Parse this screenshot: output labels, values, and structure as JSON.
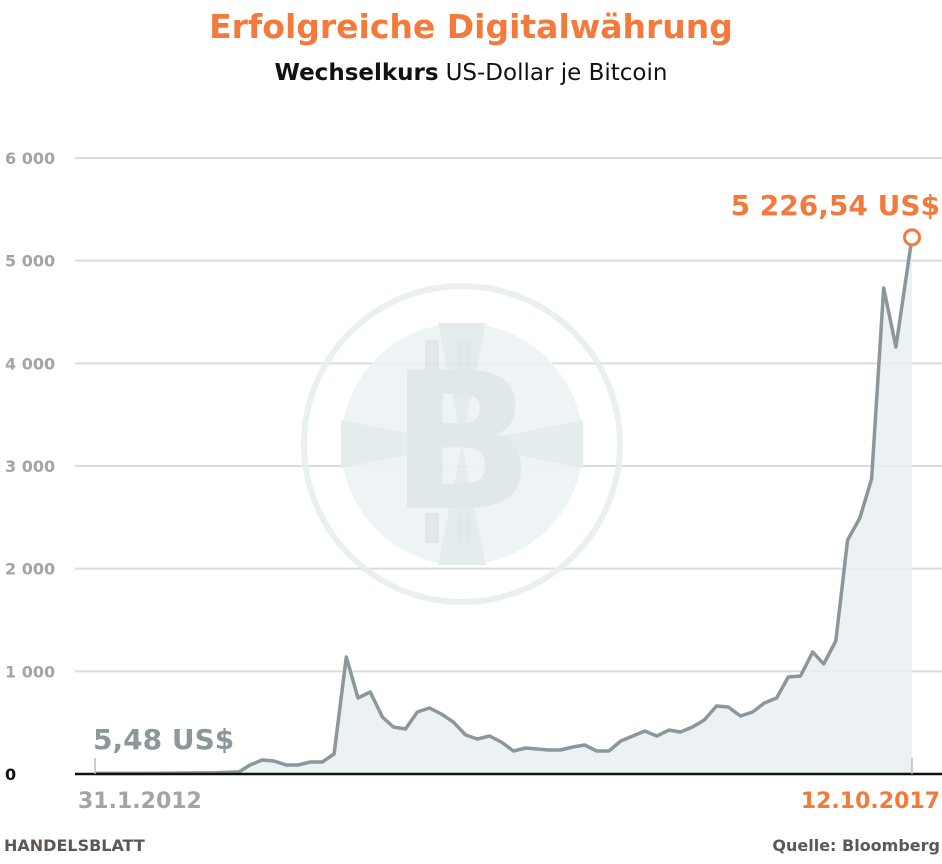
{
  "header": {
    "title": "Erfolgreiche Digitalwährung",
    "subtitle_bold": "Wechselkurs",
    "subtitle_rest": "US-Dollar je Bitcoin"
  },
  "footer": {
    "brand": "HANDELSBLATT",
    "source": "Quelle: Bloomberg"
  },
  "colors": {
    "accent": "#f47a3c",
    "line": "#8b979b",
    "area": "#e9f0f2",
    "grid": "#dcdcdc",
    "watermark": "#e8eff1",
    "footer": "#5f5753"
  },
  "watermark_icon": "bitcoin-logo",
  "chart_data": {
    "type": "area",
    "title": "Erfolgreiche Digitalwährung",
    "subtitle": "Wechselkurs US-Dollar je Bitcoin",
    "ylim": [
      0,
      6000
    ],
    "yticks": [
      0,
      1000,
      2000,
      3000,
      4000,
      5000,
      6000
    ],
    "ytick_labels": [
      "0",
      "1 000",
      "2 000",
      "3 000",
      "4 000",
      "5 000",
      "6 000"
    ],
    "xlim": [
      "2012-01-31",
      "2017-10-12"
    ],
    "xtick_labels": [
      "31.1.2012",
      "12.10.2017"
    ],
    "grid": true,
    "annotations": {
      "start": "5,48 US$",
      "end": "5 226,54 US$"
    },
    "x": [
      "2012-01-31",
      "2012-06",
      "2012-12",
      "2013-02",
      "2013-03",
      "2013-04",
      "2013-05",
      "2013-06",
      "2013-07",
      "2013-08",
      "2013-09",
      "2013-10",
      "2013-11",
      "2013-12",
      "2014-01",
      "2014-02",
      "2014-03",
      "2014-04",
      "2014-05",
      "2014-06",
      "2014-07",
      "2014-08",
      "2014-09",
      "2014-10",
      "2014-11",
      "2014-12",
      "2015-01",
      "2015-02",
      "2015-04",
      "2015-05",
      "2015-06",
      "2015-07",
      "2015-08",
      "2015-09",
      "2015-10",
      "2015-11",
      "2015-12",
      "2016-01",
      "2016-02",
      "2016-03",
      "2016-04",
      "2016-05",
      "2016-06",
      "2016-07",
      "2016-08",
      "2016-09",
      "2016-10",
      "2016-11",
      "2016-12",
      "2017-01",
      "2017-02",
      "2017-03",
      "2017-04",
      "2017-05",
      "2017-06",
      "2017-07",
      "2017-08",
      "2017-09",
      "2017-10-12"
    ],
    "values": [
      5.48,
      6,
      13,
      20,
      88,
      136,
      127,
      88,
      88,
      117,
      117,
      195,
      1140,
      740,
      799,
      555,
      458,
      438,
      604,
      643,
      584,
      506,
      380,
      341,
      370,
      312,
      224,
      253,
      234,
      234,
      263,
      282,
      224,
      224,
      321,
      370,
      419,
      370,
      428,
      409,
      458,
      526,
      662,
      653,
      565,
      604,
      692,
      740,
      945,
      955,
      1188,
      1071,
      1295,
      2279,
      2493,
      2873,
      4734,
      4159,
      5226.54
    ]
  }
}
